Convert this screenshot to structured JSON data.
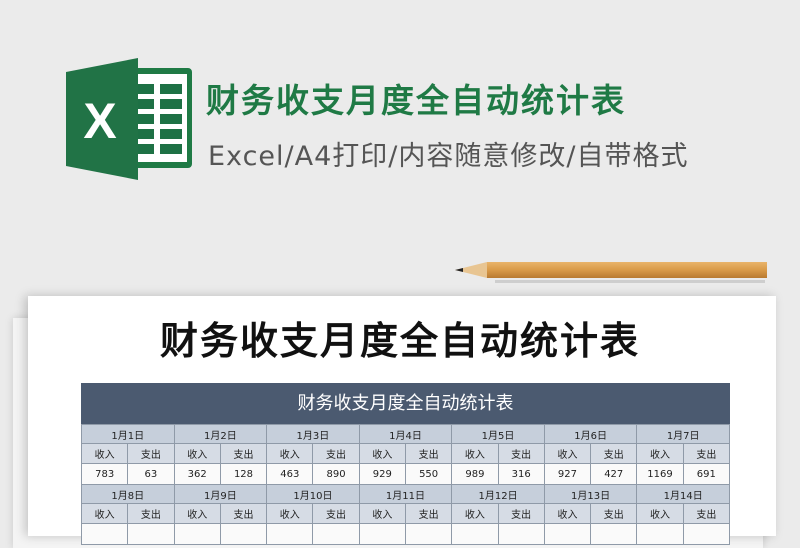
{
  "banner": {
    "title": "财务收支月度全自动统计表",
    "subtitle": "Excel/A4打印/内容随意修改/自带格式",
    "logo_letter": "X",
    "brand_color": "#1f7a45",
    "icon": "excel-logo-icon"
  },
  "document": {
    "title": "财务收支月度全自动统计表"
  },
  "sheet": {
    "header": "财务收支月度全自动统计表",
    "header_color": "#4b5a70",
    "income_label": "收入",
    "expense_label": "支出",
    "weeks": [
      {
        "days": [
          {
            "date": "1月1日",
            "income": "783",
            "expense": "63"
          },
          {
            "date": "1月2日",
            "income": "362",
            "expense": "128"
          },
          {
            "date": "1月3日",
            "income": "463",
            "expense": "890"
          },
          {
            "date": "1月4日",
            "income": "929",
            "expense": "550"
          },
          {
            "date": "1月5日",
            "income": "989",
            "expense": "316"
          },
          {
            "date": "1月6日",
            "income": "927",
            "expense": "427"
          },
          {
            "date": "1月7日",
            "income": "1169",
            "expense": "691"
          }
        ]
      },
      {
        "days": [
          {
            "date": "1月8日"
          },
          {
            "date": "1月9日"
          },
          {
            "date": "1月10日"
          },
          {
            "date": "1月11日"
          },
          {
            "date": "1月12日"
          },
          {
            "date": "1月13日"
          },
          {
            "date": "1月14日"
          }
        ]
      }
    ]
  }
}
